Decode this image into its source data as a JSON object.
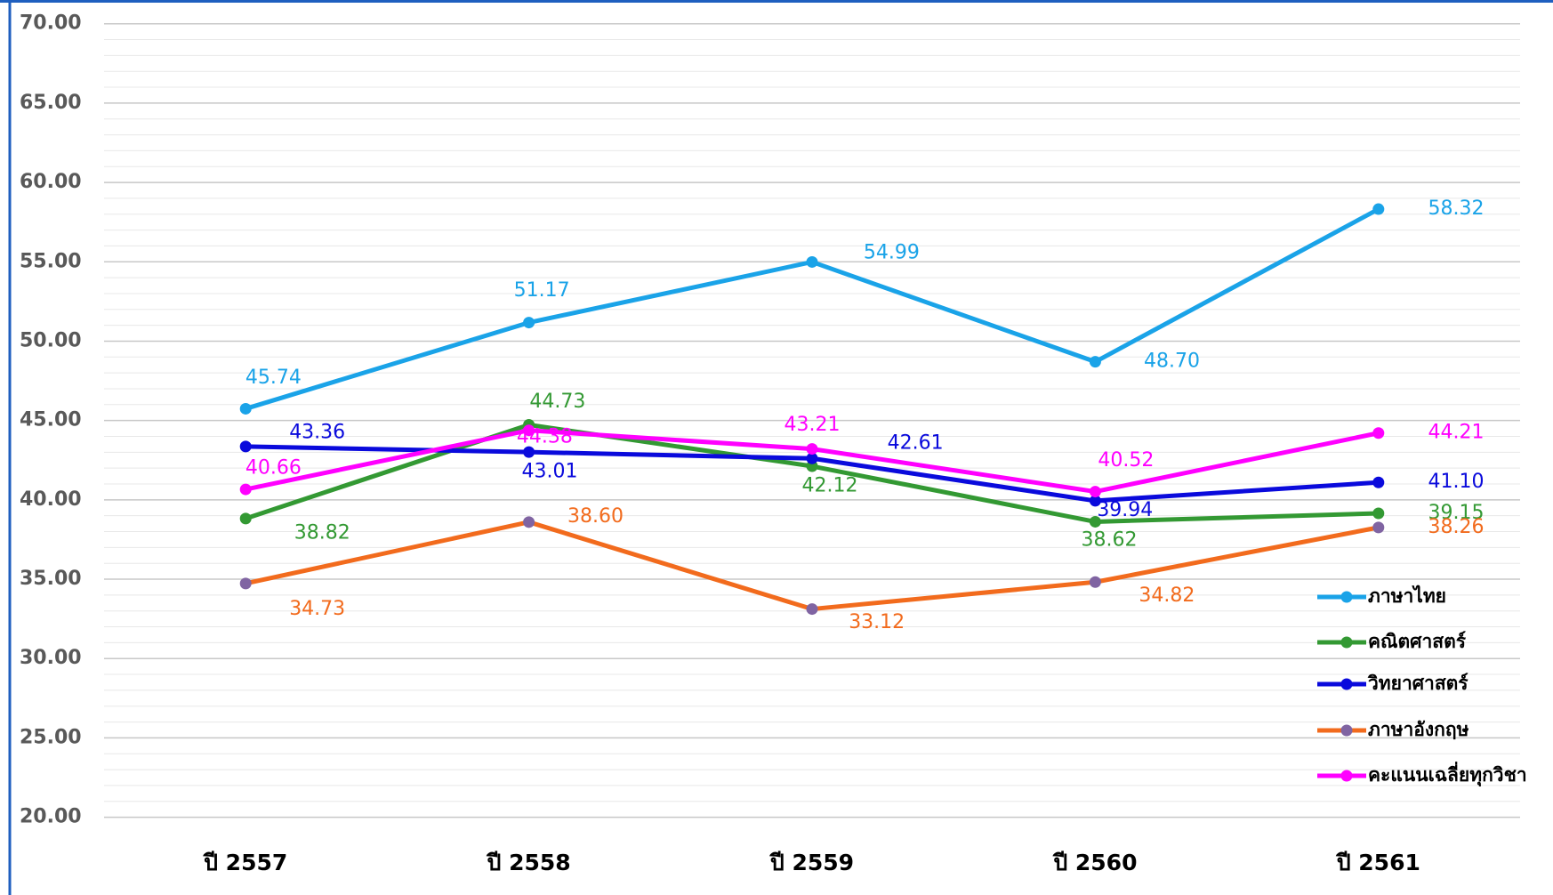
{
  "chart_data": {
    "type": "line",
    "categories": [
      "ปี 2557",
      "ปี 2558",
      "ปี 2559",
      "ปี 2560",
      "ปี 2561"
    ],
    "series": [
      {
        "name": "ภาษาไทย",
        "color": "#1aa3e8",
        "marker_color": "#1aa3e8",
        "values": [
          45.74,
          51.17,
          54.99,
          48.7,
          58.32
        ],
        "value_labels": [
          "45.74",
          "51.17",
          "54.99",
          "48.70",
          "58.32"
        ]
      },
      {
        "name": "คณิตศาสตร์",
        "color": "#339933",
        "marker_color": "#339933",
        "values": [
          38.82,
          44.73,
          42.12,
          38.62,
          39.15
        ],
        "value_labels": [
          "38.82",
          "44.73",
          "42.12",
          "38.62",
          "39.15"
        ]
      },
      {
        "name": "วิทยาศาสตร์",
        "color": "#0a0adc",
        "marker_color": "#0a0adc",
        "values": [
          43.36,
          43.01,
          42.61,
          39.94,
          41.1
        ],
        "value_labels": [
          "43.36",
          "43.01",
          "42.61",
          "39.94",
          "41.10"
        ]
      },
      {
        "name": "ภาษาอังกฤษ",
        "color": "#f26b1d",
        "marker_color": "#8064a2",
        "values": [
          34.73,
          38.6,
          33.12,
          34.82,
          38.26
        ],
        "value_labels": [
          "34.73",
          "38.60",
          "33.12",
          "34.82",
          "38.26"
        ]
      },
      {
        "name": "คะแนนเฉลี่ยทุกวิชา",
        "color": "#ff00ff",
        "marker_color": "#ff00ff",
        "values": [
          40.66,
          44.38,
          43.21,
          40.52,
          44.21
        ],
        "value_labels": [
          "40.66",
          "44.38",
          "43.21",
          "40.52",
          "44.21"
        ]
      }
    ],
    "ylim": [
      20,
      70
    ],
    "yticks": [
      {
        "value": 20,
        "label": "20.00"
      },
      {
        "value": 25,
        "label": "25.00"
      },
      {
        "value": 30,
        "label": "30.00"
      },
      {
        "value": 35,
        "label": "35.00"
      },
      {
        "value": 40,
        "label": "40.00"
      },
      {
        "value": 45,
        "label": "45.00"
      },
      {
        "value": 50,
        "label": "50.00"
      },
      {
        "value": 55,
        "label": "55.00"
      },
      {
        "value": 60,
        "label": "60.00"
      },
      {
        "value": 65,
        "label": "65.00"
      },
      {
        "value": 70,
        "label": "70.00"
      }
    ],
    "grid": true,
    "legend": "right"
  }
}
